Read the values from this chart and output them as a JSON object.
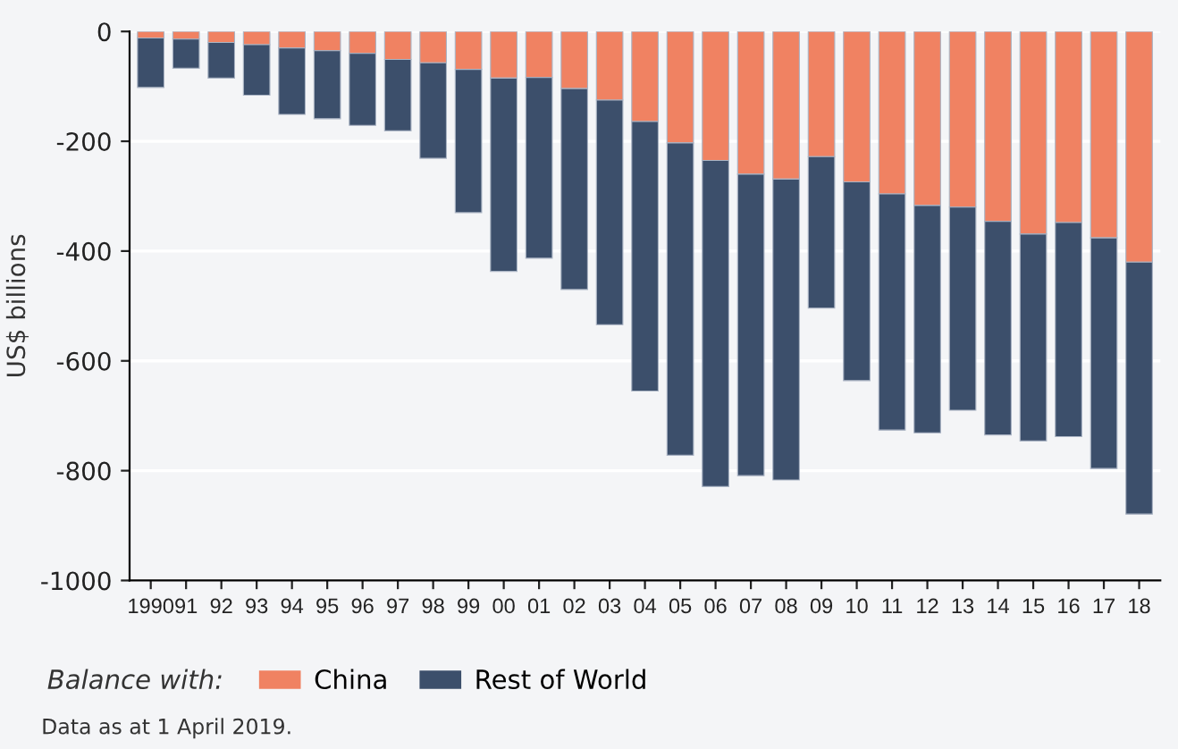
{
  "chart_data": {
    "type": "bar",
    "stacked": true,
    "ylabel": "US$ billions",
    "legend_title": "Balance with:",
    "categories": [
      "1990",
      "91",
      "92",
      "93",
      "94",
      "95",
      "96",
      "97",
      "98",
      "99",
      "00",
      "01",
      "02",
      "03",
      "04",
      "05",
      "06",
      "07",
      "08",
      "09",
      "10",
      "11",
      "12",
      "13",
      "14",
      "15",
      "16",
      "17",
      "18"
    ],
    "series": [
      {
        "name": "China",
        "color": "#f08262",
        "values": [
          -12,
          -14,
          -20,
          -24,
          -30,
          -35,
          -40,
          -51,
          -57,
          -69,
          -85,
          -84,
          -104,
          -125,
          -164,
          -203,
          -235,
          -260,
          -269,
          -228,
          -274,
          -296,
          -317,
          -320,
          -346,
          -369,
          -348,
          -376,
          -420
        ]
      },
      {
        "name": "Rest of World",
        "color": "#3c4f6b",
        "values": [
          -90,
          -53,
          -65,
          -92,
          -121,
          -124,
          -131,
          -130,
          -174,
          -261,
          -352,
          -329,
          -366,
          -409,
          -491,
          -569,
          -594,
          -549,
          -548,
          -276,
          -362,
          -430,
          -414,
          -370,
          -389,
          -377,
          -390,
          -420,
          -459
        ]
      }
    ],
    "ylim": [
      -1000,
      0
    ],
    "yticks": [
      -1000,
      -800,
      -600,
      -400,
      -200,
      0
    ],
    "grid": "y",
    "legend": "bottom",
    "annotations": [
      "Data as at 1 April 2019."
    ]
  }
}
